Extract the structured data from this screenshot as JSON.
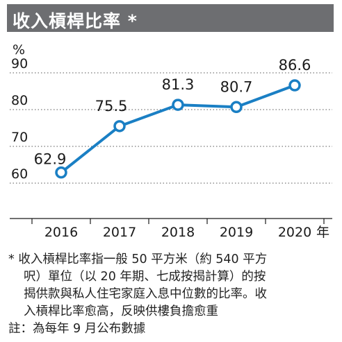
{
  "title": "收入槓桿比率 *",
  "chart_data": {
    "type": "line",
    "title": "收入槓桿比率 *",
    "ylabel": "%",
    "xlabel": "年",
    "categories": [
      "2016",
      "2017",
      "2018",
      "2019",
      "2020"
    ],
    "x_unit_suffix": "年",
    "series": [
      {
        "values": [
          62.9,
          75.5,
          81.3,
          80.7,
          86.6
        ]
      }
    ],
    "data_labels": [
      "62.9",
      "75.5",
      "81.3",
      "80.7",
      "86.6"
    ],
    "yticks": [
      60,
      70,
      80,
      90
    ],
    "ylim": [
      52,
      90
    ],
    "grid": "dotted horizontal",
    "line_color": "#1a7fc4",
    "marker_fill": "#ffffff"
  },
  "footnotes": [
    "* 收入槓桿比率指一般 50 平方米（約 540 平方",
    "呎）單位（以 20 年期、七成按揭計算）的按",
    "揭供款與私人住宅家庭入息中位數的比率。收",
    "入槓桿比率愈高，反映供樓負擔愈重",
    "註：為每年 9 月公布數據"
  ]
}
